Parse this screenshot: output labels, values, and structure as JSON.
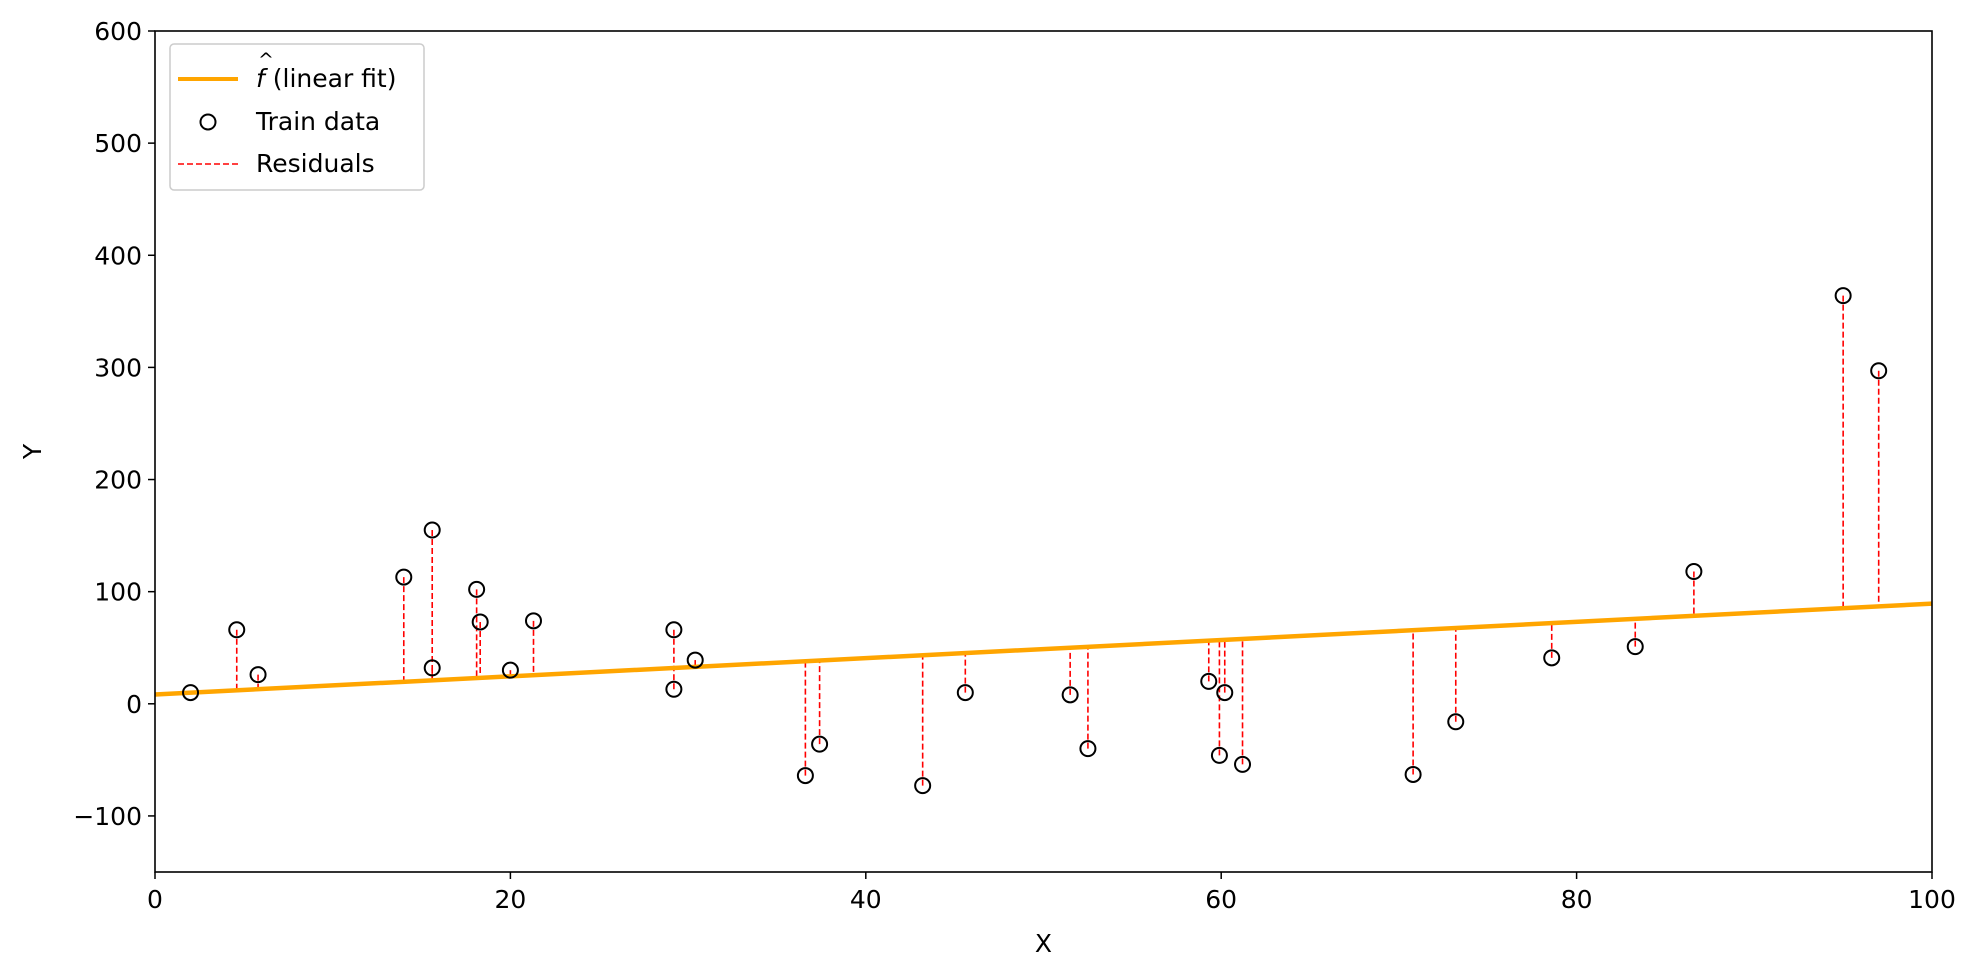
{
  "chart_data": {
    "type": "scatter",
    "title": "",
    "xlabel": "X",
    "ylabel": "Y",
    "xlim": [
      0,
      100
    ],
    "ylim": [
      -150,
      600
    ],
    "xticks": [
      0,
      20,
      40,
      60,
      80,
      100
    ],
    "yticks": [
      -100,
      0,
      100,
      200,
      300,
      400,
      500,
      600
    ],
    "ytick_labels": [
      "−100",
      "0",
      "100",
      "200",
      "300",
      "400",
      "500",
      "600"
    ],
    "grid": false,
    "legend_position": "top-left",
    "fit": {
      "name_hat": "f",
      "name_rest": "(linear fit)",
      "intercept": 8.3,
      "slope": 0.81,
      "color": "#FFA500"
    },
    "series": [
      {
        "name": "Train data",
        "marker": "open-circle",
        "color": "#000000",
        "points": [
          {
            "x": 2.0,
            "y": 10
          },
          {
            "x": 4.6,
            "y": 66
          },
          {
            "x": 5.8,
            "y": 26
          },
          {
            "x": 14.0,
            "y": 113
          },
          {
            "x": 15.6,
            "y": 155
          },
          {
            "x": 15.6,
            "y": 32
          },
          {
            "x": 18.1,
            "y": 102
          },
          {
            "x": 18.3,
            "y": 73
          },
          {
            "x": 20.0,
            "y": 30
          },
          {
            "x": 21.3,
            "y": 74
          },
          {
            "x": 29.2,
            "y": 66
          },
          {
            "x": 29.2,
            "y": 13
          },
          {
            "x": 30.4,
            "y": 39
          },
          {
            "x": 36.6,
            "y": -64
          },
          {
            "x": 37.4,
            "y": -36
          },
          {
            "x": 43.2,
            "y": -73
          },
          {
            "x": 45.6,
            "y": 10
          },
          {
            "x": 51.5,
            "y": 8
          },
          {
            "x": 52.5,
            "y": -40
          },
          {
            "x": 59.3,
            "y": 20
          },
          {
            "x": 59.9,
            "y": -46
          },
          {
            "x": 60.2,
            "y": 10
          },
          {
            "x": 61.2,
            "y": -54
          },
          {
            "x": 70.8,
            "y": -63
          },
          {
            "x": 73.2,
            "y": -16
          },
          {
            "x": 78.6,
            "y": 41
          },
          {
            "x": 83.3,
            "y": 51
          },
          {
            "x": 86.6,
            "y": 118
          },
          {
            "x": 95.0,
            "y": 364
          },
          {
            "x": 97.0,
            "y": 297
          }
        ]
      }
    ],
    "residuals": {
      "name": "Residuals",
      "color": "#FF0000"
    }
  }
}
